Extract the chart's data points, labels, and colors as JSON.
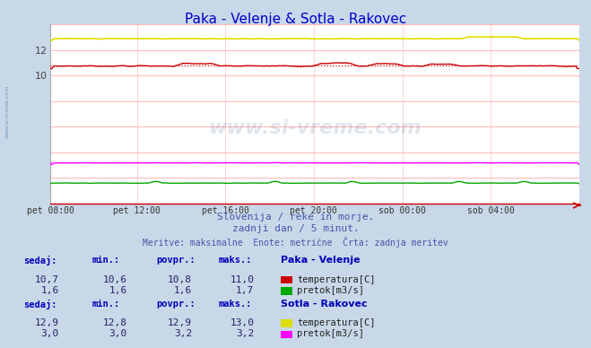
{
  "title": "Paka - Velenje & Sotla - Rakovec",
  "title_color": "#0000cc",
  "bg_color": "#c8d8e8",
  "plot_bg_color": "#ffffff",
  "grid_color": "#ffaaaa",
  "grid_color_v": "#ffcccc",
  "watermark_text": "www.si-vreme.com",
  "watermark_color": "#003366",
  "watermark_alpha": 0.12,
  "subtitle1": "Slovenija / reke in morje.",
  "subtitle2": "zadnji dan / 5 minut.",
  "subtitle3": "Meritve: maksimalne  Enote: metrične  Črta: zadnja meritev",
  "subtitle_color": "#4455aa",
  "x_tick_labels": [
    "pet 08:00",
    "pet 12:00",
    "pet 16:00",
    "pet 20:00",
    "sob 00:00",
    "sob 04:00"
  ],
  "ylim": [
    0,
    14
  ],
  "ytick_vals": [
    10,
    12
  ],
  "colors": {
    "paka_temp": "#cc0000",
    "paka_flow": "#00aa00",
    "sotla_temp": "#dddd00",
    "sotla_flow": "#ff00ff"
  },
  "paka_temp_avg": 10.8,
  "paka_flow_avg": 1.6,
  "sotla_temp_avg": 12.9,
  "sotla_flow_avg": 3.2,
  "table_hdr_color": "#0000bb",
  "table_val_color": "#222266",
  "paka_sedaj": "10,7",
  "paka_min": "10,6",
  "paka_povpr": "10,8",
  "paka_maks": "11,0",
  "paka_flow_sedaj": "1,6",
  "paka_flow_min": "1,6",
  "paka_flow_povpr": "1,6",
  "paka_flow_maks": "1,7",
  "sotla_sedaj": "12,9",
  "sotla_min": "12,8",
  "sotla_povpr": "12,9",
  "sotla_maks": "13,0",
  "sotla_flow_sedaj": "3,0",
  "sotla_flow_min": "3,0",
  "sotla_flow_povpr": "3,2",
  "sotla_flow_maks": "3,2",
  "side_text": "www.si-vreme.com"
}
